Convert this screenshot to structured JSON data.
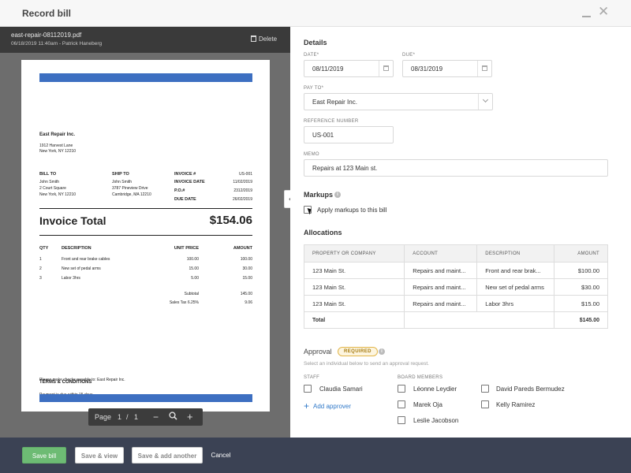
{
  "window": {
    "title": "Record bill"
  },
  "viewer": {
    "file_name": "east-repair-08112019.pdf",
    "file_meta": "06/18/2019 11:40am - Patrick Haneberg",
    "delete_label": "Delete",
    "pager": {
      "label": "Page",
      "current": "1",
      "sep": "/",
      "total": "1",
      "minus": "−",
      "plus": "+"
    }
  },
  "invoice": {
    "company": "East Repair Inc.",
    "address1": "1912 Harvest Lane",
    "address2": "New York, NY 12210",
    "bill_to_label": "BILL TO",
    "bill_to": [
      "John Smith",
      "2 Court Square",
      "New York, NY 12210"
    ],
    "ship_to_label": "SHIP TO",
    "ship_to": [
      "John Smith",
      "3787 Pineview Drive",
      "Cambridge, MA 12210"
    ],
    "meta": [
      {
        "label": "INVOICE #",
        "value": "US-001"
      },
      {
        "label": "INVOICE DATE",
        "value": "11/02/2019"
      },
      {
        "label": "P.O.#",
        "value": "2312/2019"
      },
      {
        "label": "DUE DATE",
        "value": "26/02/2019"
      }
    ],
    "total_label": "Invoice Total",
    "total_value": "$154.06",
    "columns": {
      "qty": "QTY",
      "desc": "DESCRIPTION",
      "unit": "UNIT PRICE",
      "amount": "AMOUNT"
    },
    "lines": [
      {
        "qty": "1",
        "desc": "Front and rear brake cables",
        "unit": "100.00",
        "amount": "100.00"
      },
      {
        "qty": "2",
        "desc": "New set of pedal arms",
        "unit": "15.00",
        "amount": "30.00"
      },
      {
        "qty": "3",
        "desc": "Labor 3hrs",
        "unit": "5.00",
        "amount": "15.00"
      }
    ],
    "subtotal_label": "Subtotal",
    "subtotal_value": "145.00",
    "tax_label": "Sales Tax 6.25%",
    "tax_value": "9.06",
    "terms_title": "TERMS & CONDITIONS",
    "terms_1": "Payment is due within 15 days",
    "terms_2": "Please make checks payable to: East Repair Inc."
  },
  "form": {
    "details_title": "Details",
    "date_label": "DATE*",
    "date_value": "08/11/2019",
    "due_label": "DUE*",
    "due_value": "08/31/2019",
    "payto_label": "PAY TO*",
    "payto_value": "East Repair Inc.",
    "ref_label": "REFERENCE NUMBER",
    "ref_value": "US-001",
    "memo_label": "MEMO",
    "memo_value": "Repairs at 123 Main st.",
    "markups_title": "Markups",
    "markups_checkbox": "Apply markups to this bill",
    "allocations_title": "Allocations",
    "alloc_columns": {
      "property": "PROPERTY OR COMPANY",
      "account": "ACCOUNT",
      "description": "DESCRIPTION",
      "amount": "AMOUNT"
    },
    "alloc_rows": [
      {
        "property": "123 Main St.",
        "account": "Repairs and maint...",
        "description": "Front and rear brak...",
        "amount": "$100.00"
      },
      {
        "property": "123 Main St.",
        "account": "Repairs and maint...",
        "description": "New set of pedal arms",
        "amount": "$30.00"
      },
      {
        "property": "123 Main St.",
        "account": "Repairs and maint...",
        "description": "Labor 3hrs",
        "amount": "$15.00"
      }
    ],
    "alloc_total_label": "Total",
    "alloc_total_value": "$145.00",
    "approval_title": "Approval",
    "approval_badge": "REQUIRED",
    "approval_hint": "Select an individual below to send an approval request.",
    "staff_label": "STAFF",
    "board_label": "BOARD MEMBERS",
    "staff": [
      "Claudia Samari"
    ],
    "board": [
      "Léonne Leydier",
      "Marek Oja",
      "Leslie Jacobson",
      "David Pareds Bermudez",
      "Kelly Ramirez"
    ],
    "add_approver": "Add approver"
  },
  "footer": {
    "save": "Save bill",
    "save_view": "Save & view",
    "save_add": "Save & add another",
    "cancel": "Cancel"
  }
}
